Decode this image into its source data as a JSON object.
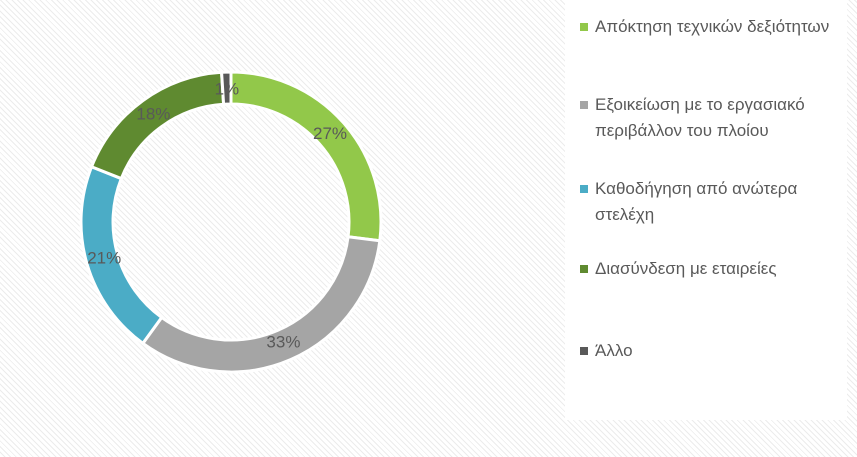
{
  "chart_data": {
    "type": "donut",
    "categories": [
      "Απόκτηση τεχνικών δεξιότητων",
      "Εξοικείωση με το εργασιακό περιβάλλον του πλοίου",
      "Καθοδήγηση από ανώτερα στελέχη",
      "Διασύνδεση με εταιρείες",
      "Άλλο"
    ],
    "values": [
      27,
      33,
      21,
      18,
      1
    ],
    "value_labels": [
      "27%",
      "33%",
      "21%",
      "18%",
      "1%"
    ],
    "colors": [
      "#92c84a",
      "#a5a5a5",
      "#4bacc6",
      "#5f8a30",
      "#595959"
    ]
  }
}
